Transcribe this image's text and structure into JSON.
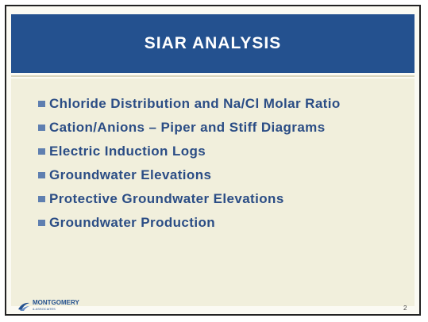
{
  "header": {
    "title": "SIAR ANALYSIS"
  },
  "bullets": [
    "Chloride Distribution and Na/Cl Molar Ratio",
    "Cation/Anions – Piper and Stiff Diagrams",
    "Electric Induction Logs",
    "Groundwater Elevations",
    "Protective Groundwater Elevations",
    "Groundwater Production"
  ],
  "footer": {
    "logo_name": "MONTGOMERY",
    "logo_sub": "& ASSOCIATES",
    "page_number": "2"
  }
}
